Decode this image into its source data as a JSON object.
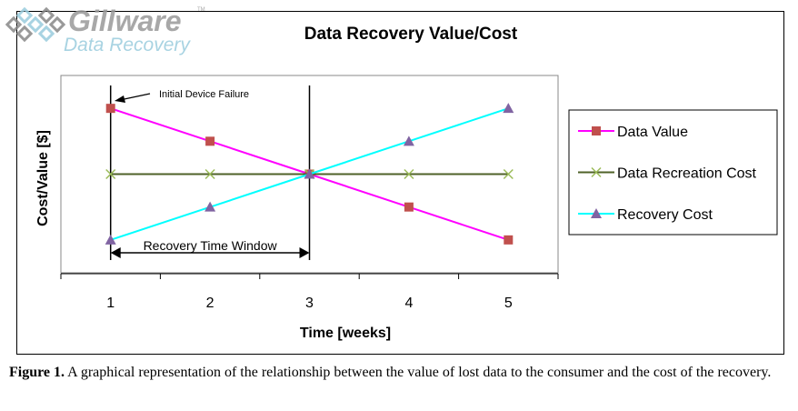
{
  "logo": {
    "brand": "Gillware",
    "sub": "Data Recovery",
    "tm": "TM"
  },
  "chart_data": {
    "type": "line",
    "title": "Data Recovery Value/Cost",
    "xlabel": "Time [weeks]",
    "ylabel": "Cost/Value [$]",
    "categories": [
      "1",
      "2",
      "3",
      "4",
      "5"
    ],
    "ylim": [
      0,
      6
    ],
    "grid": false,
    "legend_position": "right",
    "series": [
      {
        "name": "Data Value",
        "values": [
          5,
          4,
          3,
          2,
          1
        ],
        "color": "#FF00FF",
        "marker": "square",
        "marker_color": "#C0504D"
      },
      {
        "name": "Data Recreation Cost",
        "values": [
          3,
          3,
          3,
          3,
          3
        ],
        "color": "#4F6228",
        "marker": "x",
        "marker_color": "#9BBB59"
      },
      {
        "name": "Recovery Cost",
        "values": [
          1,
          2,
          3,
          4,
          5
        ],
        "color": "#00FFFF",
        "marker": "triangle",
        "marker_color": "#8064A2"
      }
    ],
    "annotations": [
      {
        "text": "Initial Device Failure",
        "at": "1"
      },
      {
        "text": "Recovery Time Window",
        "from": "1",
        "to": "3"
      }
    ]
  },
  "caption": {
    "label": "Figure 1.",
    "text": "  A graphical representation of the relationship between the value of lost data to the consumer and the cost of the recovery."
  }
}
